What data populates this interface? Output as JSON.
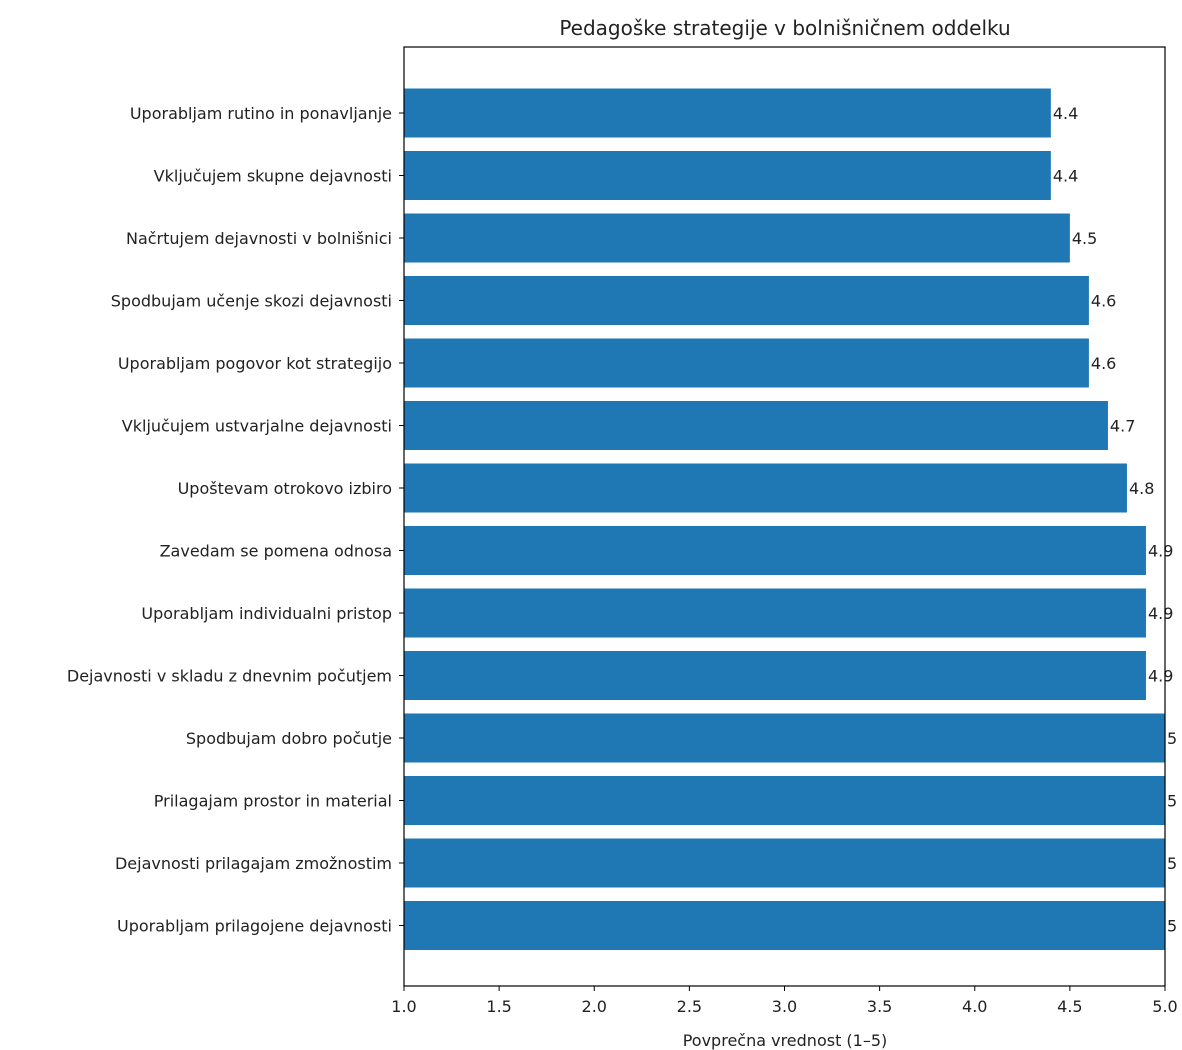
{
  "chart_data": {
    "type": "bar",
    "orientation": "horizontal",
    "title": "Pedagoške strategije v bolnišničnem oddelku",
    "xlabel": "Povprečna vrednost (1–5)",
    "ylabel": "",
    "xlim": [
      1.0,
      5.0
    ],
    "xticks": [
      "1.0",
      "1.5",
      "2.0",
      "2.5",
      "3.0",
      "3.5",
      "4.0",
      "4.5",
      "5.0"
    ],
    "categories": [
      "Uporabljam rutino in ponavljanje",
      "Vključujem skupne dejavnosti",
      "Načrtujem dejavnosti v bolnišnici",
      "Spodbujam učenje skozi dejavnosti",
      "Uporabljam pogovor kot strategijo",
      "Vključujem ustvarjalne dejavnosti",
      "Upoštevam otrokovo izbiro",
      "Zavedam se pomena odnosa",
      "Uporabljam individualni pristop",
      "Dejavnosti v skladu z dnevnim počutjem",
      "Spodbujam dobro počutje",
      "Prilagajam prostor in material",
      "Dejavnosti prilagajam zmožnostim",
      "Uporabljam prilagojene dejavnosti"
    ],
    "values": [
      4.4,
      4.4,
      4.5,
      4.6,
      4.6,
      4.7,
      4.8,
      4.9,
      4.9,
      4.9,
      5,
      5,
      5,
      5
    ],
    "value_labels": [
      "4.4",
      "4.4",
      "4.5",
      "4.6",
      "4.6",
      "4.7",
      "4.8",
      "4.9",
      "4.9",
      "4.9",
      "5",
      "5",
      "5",
      "5"
    ],
    "bar_color": "#1f77b4",
    "grid": false,
    "legend": "none"
  }
}
